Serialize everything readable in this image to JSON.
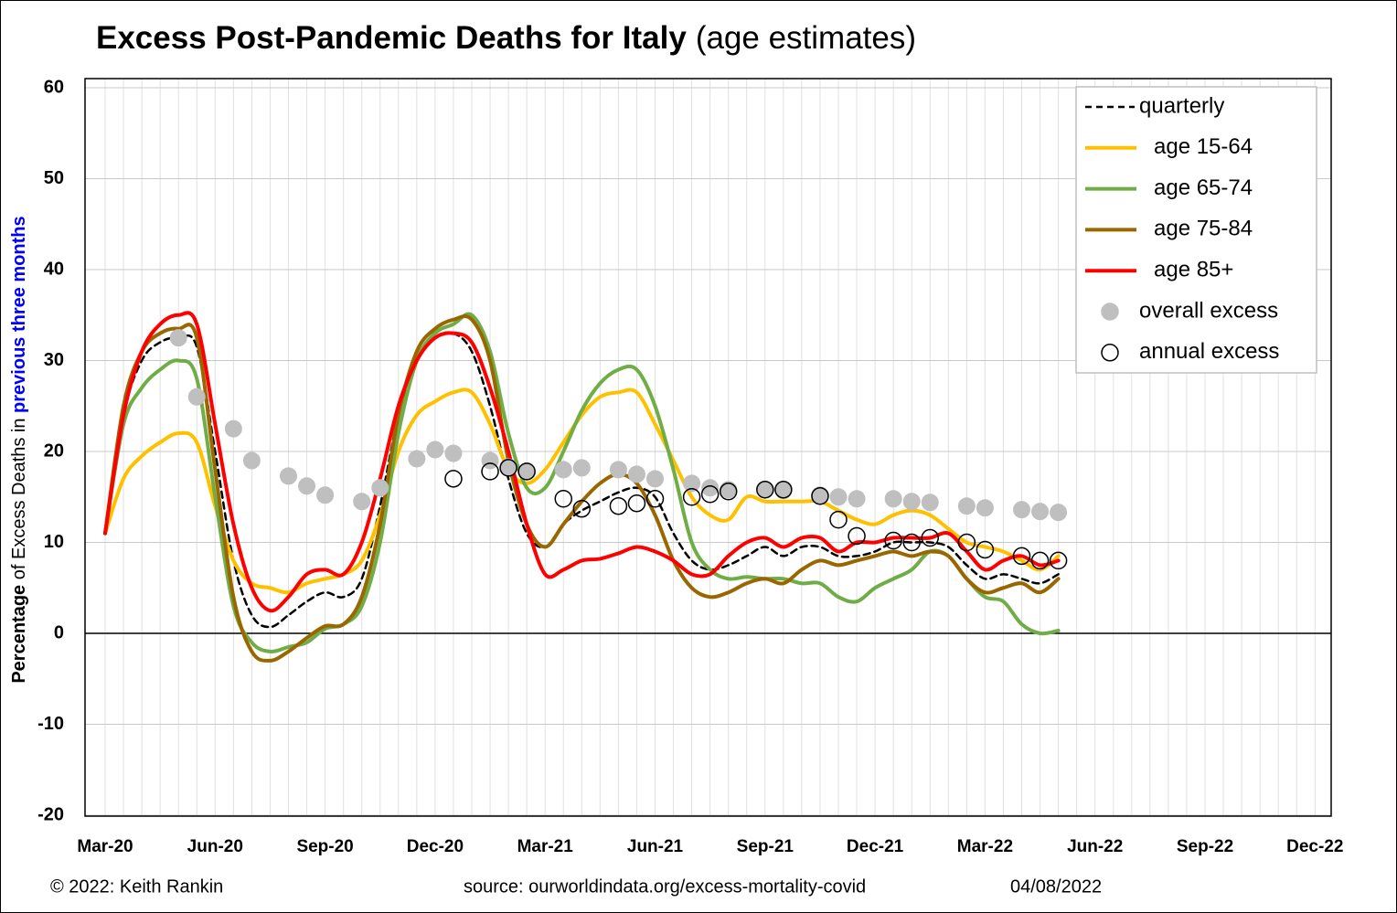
{
  "chart_data": {
    "type": "line",
    "title": "Excess Post-Pandemic Deaths for Italy",
    "title_note": "(age estimates)",
    "y_label": [
      "Percentage",
      " of Excess Deaths in ",
      "previous three months"
    ],
    "footer": [
      "© 2022: Keith Rankin",
      "source: ourworldindata.org/excess-mortality-covid",
      "04/08/2022"
    ],
    "categories": [
      "Mar-20",
      null,
      null,
      null,
      null,
      null,
      "Jun-20",
      null,
      null,
      null,
      null,
      null,
      "Sep-20",
      null,
      null,
      null,
      null,
      null,
      "Dec-20",
      null,
      null,
      null,
      null,
      null,
      "Mar-21",
      null,
      null,
      null,
      null,
      null,
      "Jun-21",
      null,
      null,
      null,
      null,
      null,
      "Sep-21",
      null,
      null,
      null,
      null,
      null,
      "Dec-21",
      null,
      null,
      null,
      null,
      null,
      "Mar-22",
      null,
      null,
      null,
      null,
      null,
      "Jun-22",
      null,
      null,
      null,
      null,
      null,
      "Sep-22",
      null,
      null,
      null,
      null,
      null,
      "Dec-22"
    ],
    "ylim": [
      -20,
      60
    ],
    "yticks": [
      -20,
      -10,
      0,
      10,
      20,
      30,
      40,
      50,
      60
    ],
    "grid": true,
    "legend": "upper right",
    "series": [
      {
        "name": "quarterly",
        "color": "#000000",
        "style": "dashed",
        "values": [
          11,
          24,
          30,
          32,
          32.5,
          31.5,
          20,
          8,
          2,
          0.7,
          2,
          3.5,
          4.5,
          4,
          6,
          14,
          24,
          30,
          32.5,
          33,
          31,
          25,
          17,
          11,
          9.5,
          12,
          13.5,
          14.5,
          15.5,
          16,
          15,
          11,
          8,
          7,
          7.5,
          8.5,
          9.5,
          8.5,
          9.5,
          9.5,
          8.5,
          8.5,
          9,
          10,
          10,
          10,
          9.5,
          7.5,
          6,
          6.5,
          6,
          5.5,
          6.5,
          null,
          null,
          null,
          null,
          null,
          null,
          null,
          null,
          null,
          null,
          null,
          null,
          null,
          null
        ]
      },
      {
        "name": "age 15-64",
        "color": "#ffc000",
        "style": "solid",
        "values": [
          11,
          17,
          19.5,
          21,
          22,
          21,
          14,
          8,
          5.5,
          5,
          4.5,
          5.5,
          6,
          6.5,
          8,
          13,
          20,
          24,
          25.5,
          26.5,
          26.5,
          23,
          18,
          16.5,
          18,
          21,
          24,
          26,
          26.5,
          26.5,
          23,
          19,
          15,
          13,
          12.5,
          15,
          14.5,
          14.5,
          14.5,
          14.5,
          13.5,
          12.5,
          12,
          13,
          13.5,
          13,
          11.5,
          10,
          9.5,
          9,
          8,
          7,
          8.5,
          null,
          null,
          null,
          null,
          null,
          null,
          null,
          null,
          null,
          null,
          null,
          null,
          null,
          null
        ]
      },
      {
        "name": "age 65-74",
        "color": "#70ad47",
        "style": "solid",
        "values": [
          11,
          23,
          27,
          29,
          30,
          28,
          15,
          3,
          -1,
          -2,
          -1.5,
          -1,
          0.5,
          1,
          3,
          10,
          22,
          30,
          33,
          34,
          35,
          31,
          22,
          16,
          16,
          20,
          24.5,
          27.5,
          29,
          29,
          25,
          18,
          10,
          7,
          6,
          6.2,
          6,
          6,
          5.5,
          5.5,
          4,
          3.5,
          5,
          6,
          7,
          9,
          8.5,
          6,
          4,
          3.5,
          1,
          0,
          0.3,
          null,
          null,
          null,
          null,
          null,
          null,
          null,
          null,
          null,
          null,
          null,
          null,
          null,
          null
        ]
      },
      {
        "name": "age 75-84",
        "color": "#996600",
        "style": "solid",
        "values": [
          11,
          25,
          31,
          33,
          33.5,
          32.5,
          18,
          4,
          -2,
          -3,
          -2,
          -0.5,
          0.8,
          1,
          4,
          12,
          24,
          31,
          33.5,
          34.5,
          34.5,
          30,
          19,
          12,
          9.5,
          12,
          14.5,
          16.5,
          17.5,
          16.5,
          13,
          8,
          5,
          4,
          4.5,
          5.5,
          6,
          5.5,
          7,
          8,
          7.5,
          8,
          8.5,
          9,
          8.5,
          9,
          8.5,
          6,
          4.5,
          5,
          5.5,
          4.5,
          6,
          null,
          null,
          null,
          null,
          null,
          null,
          null,
          null,
          null,
          null,
          null,
          null,
          null,
          null
        ]
      },
      {
        "name": "age 85+",
        "color": "#ff0000",
        "style": "solid",
        "values": [
          11,
          24,
          31,
          34,
          35,
          34,
          23,
          12,
          5,
          2.5,
          4,
          6.5,
          7,
          6.5,
          10,
          17,
          25,
          30,
          32.5,
          33,
          32,
          27,
          20,
          12,
          6.5,
          7,
          8,
          8.2,
          8.8,
          9.5,
          9,
          8,
          6.5,
          6.5,
          8.5,
          10,
          10.5,
          9.5,
          10.5,
          10.5,
          9,
          10,
          10,
          10.5,
          10.5,
          10.5,
          11,
          9,
          7,
          8,
          8.5,
          7.5,
          8,
          null,
          null,
          null,
          null,
          null,
          null,
          null,
          null,
          null,
          null,
          null,
          null,
          null,
          null
        ]
      },
      {
        "name": "overall excess",
        "color": "#bfbfbf",
        "style": "dots",
        "values": [
          null,
          null,
          null,
          null,
          32.5,
          26,
          null,
          22.5,
          19,
          null,
          17.3,
          16.2,
          15.2,
          null,
          14.5,
          16,
          null,
          19.2,
          20.2,
          19.8,
          null,
          19,
          18.3,
          17.8,
          null,
          18,
          18.2,
          null,
          18,
          17.5,
          17,
          null,
          16.5,
          16,
          15.8,
          null,
          15.8,
          15.7,
          null,
          15.2,
          15,
          14.8,
          null,
          14.8,
          14.5,
          14.4,
          null,
          14,
          13.8,
          null,
          13.6,
          13.4,
          13.3,
          null,
          null,
          null,
          null,
          null,
          null,
          null,
          null,
          null,
          null,
          null,
          null,
          null,
          null
        ]
      },
      {
        "name": "annual excess",
        "color": "#000000",
        "style": "open circles",
        "values": [
          null,
          null,
          null,
          null,
          null,
          null,
          null,
          null,
          null,
          null,
          null,
          null,
          null,
          null,
          null,
          null,
          null,
          null,
          null,
          17,
          null,
          17.8,
          18.2,
          17.8,
          null,
          14.8,
          13.7,
          null,
          14,
          14.3,
          14.8,
          null,
          15,
          15.3,
          15.6,
          null,
          15.8,
          15.8,
          null,
          15.1,
          12.5,
          10.7,
          null,
          10.2,
          10,
          10.5,
          null,
          10,
          9.2,
          null,
          8.5,
          8,
          8,
          null,
          null,
          null,
          null,
          null,
          null,
          null,
          null,
          null,
          null,
          null,
          null,
          null,
          null
        ]
      }
    ]
  }
}
